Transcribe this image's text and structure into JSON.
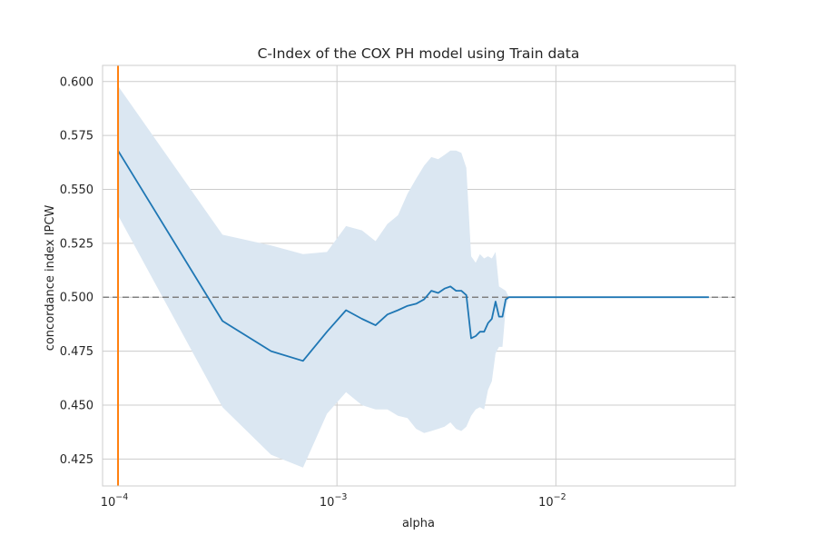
{
  "chart_data": {
    "type": "line",
    "title": "C-Index of the COX PH model using Train data",
    "xlabel": "alpha",
    "ylabel": "concordance index IPCW",
    "xscale": "log",
    "xlim": [
      8.5e-05,
      0.066
    ],
    "ylim": [
      0.4125,
      0.6075
    ],
    "x_ticks": [
      {
        "value": 0.0001,
        "base": "10",
        "exp": "−4"
      },
      {
        "value": 0.001,
        "base": "10",
        "exp": "−3"
      },
      {
        "value": 0.01,
        "base": "10",
        "exp": "−2"
      }
    ],
    "y_ticks": [
      "0.425",
      "0.450",
      "0.475",
      "0.500",
      "0.525",
      "0.550",
      "0.575",
      "0.600"
    ],
    "grid": true,
    "reference_line": {
      "y": 0.5,
      "style": "dashed",
      "color": "#808080"
    },
    "vertical_line": {
      "x": 0.0001,
      "color": "#ff7f0e"
    },
    "series": [
      {
        "color": "#1f77b4",
        "band_color": "#dbe7f2",
        "points": [
          {
            "x": 0.0001,
            "y": 0.568,
            "lo": 0.538,
            "hi": 0.598
          },
          {
            "x": 0.0003,
            "y": 0.489,
            "lo": 0.449,
            "hi": 0.529
          },
          {
            "x": 0.0005,
            "y": 0.475,
            "lo": 0.427,
            "hi": 0.524
          },
          {
            "x": 0.0007,
            "y": 0.4705,
            "lo": 0.421,
            "hi": 0.52
          },
          {
            "x": 0.0009,
            "y": 0.484,
            "lo": 0.446,
            "hi": 0.521
          },
          {
            "x": 0.0011,
            "y": 0.494,
            "lo": 0.456,
            "hi": 0.533
          },
          {
            "x": 0.0013,
            "y": 0.49,
            "lo": 0.45,
            "hi": 0.531
          },
          {
            "x": 0.0015,
            "y": 0.487,
            "lo": 0.448,
            "hi": 0.526
          },
          {
            "x": 0.0017,
            "y": 0.492,
            "lo": 0.448,
            "hi": 0.534
          },
          {
            "x": 0.0019,
            "y": 0.494,
            "lo": 0.445,
            "hi": 0.538
          },
          {
            "x": 0.0021,
            "y": 0.496,
            "lo": 0.444,
            "hi": 0.548
          },
          {
            "x": 0.0023,
            "y": 0.497,
            "lo": 0.439,
            "hi": 0.555
          },
          {
            "x": 0.0025,
            "y": 0.499,
            "lo": 0.437,
            "hi": 0.561
          },
          {
            "x": 0.0027,
            "y": 0.503,
            "lo": 0.438,
            "hi": 0.565
          },
          {
            "x": 0.0029,
            "y": 0.502,
            "lo": 0.439,
            "hi": 0.564
          },
          {
            "x": 0.0031,
            "y": 0.504,
            "lo": 0.44,
            "hi": 0.566
          },
          {
            "x": 0.0033,
            "y": 0.505,
            "lo": 0.442,
            "hi": 0.568
          },
          {
            "x": 0.0035,
            "y": 0.503,
            "lo": 0.439,
            "hi": 0.568
          },
          {
            "x": 0.0037,
            "y": 0.503,
            "lo": 0.438,
            "hi": 0.567
          },
          {
            "x": 0.0039,
            "y": 0.501,
            "lo": 0.44,
            "hi": 0.56
          },
          {
            "x": 0.0041,
            "y": 0.481,
            "lo": 0.445,
            "hi": 0.519
          },
          {
            "x": 0.0043,
            "y": 0.482,
            "lo": 0.448,
            "hi": 0.516
          },
          {
            "x": 0.0045,
            "y": 0.484,
            "lo": 0.449,
            "hi": 0.52
          },
          {
            "x": 0.0047,
            "y": 0.484,
            "lo": 0.448,
            "hi": 0.518
          },
          {
            "x": 0.0049,
            "y": 0.488,
            "lo": 0.457,
            "hi": 0.519
          },
          {
            "x": 0.0051,
            "y": 0.49,
            "lo": 0.461,
            "hi": 0.518
          },
          {
            "x": 0.0053,
            "y": 0.498,
            "lo": 0.474,
            "hi": 0.521
          },
          {
            "x": 0.0055,
            "y": 0.491,
            "lo": 0.477,
            "hi": 0.505
          },
          {
            "x": 0.0057,
            "y": 0.491,
            "lo": 0.477,
            "hi": 0.504
          },
          {
            "x": 0.0059,
            "y": 0.499,
            "lo": 0.495,
            "hi": 0.503
          },
          {
            "x": 0.0061,
            "y": 0.5,
            "lo": 0.5,
            "hi": 0.5
          },
          {
            "x": 0.05,
            "y": 0.5,
            "lo": 0.5,
            "hi": 0.5
          }
        ]
      }
    ]
  }
}
